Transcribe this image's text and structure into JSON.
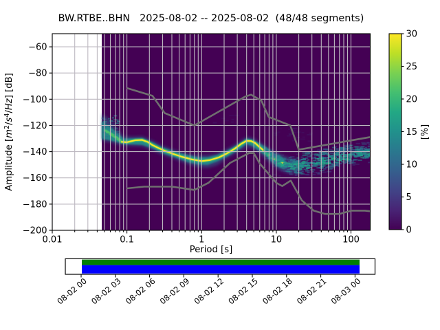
{
  "chart_data": [
    {
      "type": "heatmap",
      "title": "BW.RTBE..BHN   2025-08-02 -- 2025-08-02  (48/48 segments)",
      "xlabel": "Period [s]",
      "ylabel": "Amplitude [m2/s4/Hz] [dB]",
      "ylabel_parts": {
        "prefix": "Amplitude [",
        "unit_m": "m",
        "exp_m": "2",
        "slash1": "/",
        "unit_s": "s",
        "exp_s": "4",
        "slash2": "/",
        "unit_hz": "Hz",
        "suffix": "] [dB]"
      },
      "xscale": "log",
      "grid": true,
      "xlim": [
        0.01,
        181
      ],
      "ylim": [
        -200,
        -50
      ],
      "x_ticks": [
        {
          "v": 0.01,
          "label": "0.01"
        },
        {
          "v": 0.1,
          "label": "0.1"
        },
        {
          "v": 1,
          "label": "1"
        },
        {
          "v": 10,
          "label": "10"
        },
        {
          "v": 100,
          "label": "100"
        }
      ],
      "y_ticks": [
        {
          "v": -60,
          "label": "−60"
        },
        {
          "v": -80,
          "label": "−80"
        },
        {
          "v": -100,
          "label": "−100"
        },
        {
          "v": -120,
          "label": "−120"
        },
        {
          "v": -140,
          "label": "−140"
        },
        {
          "v": -160,
          "label": "−160"
        },
        {
          "v": -180,
          "label": "−180"
        },
        {
          "v": -200,
          "label": "−200"
        }
      ],
      "background_color": "#440154",
      "grid_color": "#bdb8c0",
      "noise_model_color": "#6f6f6f",
      "data_period_range": [
        0.046,
        181
      ],
      "colorbar": {
        "label": "[%]",
        "min": 0,
        "max": 30,
        "ticks": [
          "0",
          "5",
          "10",
          "15",
          "20",
          "25",
          "30"
        ],
        "tick_values": [
          0,
          5,
          10,
          15,
          20,
          25,
          30
        ],
        "colormap": "viridis",
        "stops": [
          "#440154",
          "#482475",
          "#414487",
          "#355f8d",
          "#2a788e",
          "#21918c",
          "#22a884",
          "#44bf70",
          "#7ad151",
          "#bddf26",
          "#fde725"
        ]
      },
      "psd_mode_curve_db": [
        [
          0.048,
          -123
        ],
        [
          0.055,
          -125
        ],
        [
          0.065,
          -127.5
        ],
        [
          0.075,
          -130
        ],
        [
          0.085,
          -132.5
        ],
        [
          0.1,
          -132.8
        ],
        [
          0.115,
          -132
        ],
        [
          0.13,
          -131.3
        ],
        [
          0.16,
          -131.1
        ],
        [
          0.19,
          -132.6
        ],
        [
          0.22,
          -135
        ],
        [
          0.26,
          -137
        ],
        [
          0.32,
          -139.3
        ],
        [
          0.42,
          -141.8
        ],
        [
          0.55,
          -144
        ],
        [
          0.75,
          -146
        ],
        [
          1,
          -147.2
        ],
        [
          1.3,
          -146.4
        ],
        [
          1.7,
          -144.4
        ],
        [
          2.2,
          -141.2
        ],
        [
          2.8,
          -137.6
        ],
        [
          3.4,
          -134
        ],
        [
          4,
          -131.7
        ],
        [
          4.6,
          -131.9
        ],
        [
          5.2,
          -133.4
        ],
        [
          6,
          -136.6
        ],
        [
          7,
          -139.8
        ],
        [
          8,
          -142.6
        ],
        [
          9,
          -144.8
        ],
        [
          10.5,
          -147
        ],
        [
          12.5,
          -149
        ],
        [
          15,
          -150.2
        ],
        [
          18,
          -150.8
        ],
        [
          22,
          -150.6
        ],
        [
          28,
          -149.6
        ],
        [
          35,
          -148.4
        ],
        [
          45,
          -147
        ],
        [
          60,
          -145.4
        ],
        [
          80,
          -143.8
        ],
        [
          110,
          -142.4
        ],
        [
          150,
          -141.2
        ],
        [
          185,
          -140.4
        ]
      ],
      "psd_envelope_db": [
        [
          0.046,
          -111,
          -132
        ],
        [
          0.06,
          -116,
          -133
        ],
        [
          0.075,
          -123,
          -134.5
        ],
        [
          0.09,
          -128,
          -135.5
        ],
        [
          0.12,
          -128.5,
          -135.8
        ],
        [
          0.16,
          -128.3,
          -136
        ],
        [
          0.22,
          -131.5,
          -139
        ],
        [
          0.3,
          -135.5,
          -142.5
        ],
        [
          0.45,
          -139,
          -146
        ],
        [
          0.65,
          -141.5,
          -149.5
        ],
        [
          0.9,
          -142.5,
          -152
        ],
        [
          1.2,
          -142.5,
          -152.5
        ],
        [
          1.6,
          -141.5,
          -150.5
        ],
        [
          2.2,
          -137.8,
          -145
        ],
        [
          3,
          -133.5,
          -140.5
        ],
        [
          4,
          -128.5,
          -136.5
        ],
        [
          4.8,
          -129.5,
          -137.5
        ],
        [
          6,
          -132.5,
          -141.5
        ],
        [
          7.5,
          -136,
          -146.5
        ],
        [
          9,
          -139,
          -150.5
        ],
        [
          11,
          -141.5,
          -154
        ],
        [
          14,
          -144,
          -156.5
        ],
        [
          18,
          -145.5,
          -157
        ],
        [
          22,
          -146,
          -157
        ]
      ],
      "psd_mid_band_db": [
        [
          0.046,
          -117,
          -130
        ],
        [
          0.06,
          -121,
          -131.5
        ],
        [
          0.075,
          -126,
          -132.8
        ],
        [
          0.09,
          -130,
          -134.3
        ],
        [
          0.12,
          -129.8,
          -134.5
        ],
        [
          0.16,
          -129.5,
          -134.8
        ],
        [
          0.22,
          -132.8,
          -137.5
        ],
        [
          0.3,
          -136.8,
          -141.3
        ],
        [
          0.45,
          -140,
          -144.5
        ],
        [
          0.65,
          -142.5,
          -148
        ],
        [
          0.9,
          -144.3,
          -149.8
        ],
        [
          1.2,
          -144.3,
          -150
        ],
        [
          1.6,
          -142.5,
          -147.5
        ],
        [
          2.2,
          -139,
          -143.8
        ],
        [
          3,
          -134.8,
          -139.3
        ],
        [
          4,
          -129.8,
          -134
        ],
        [
          4.8,
          -130.8,
          -135.8
        ],
        [
          6,
          -133.8,
          -139.8
        ],
        [
          7.5,
          -137,
          -144
        ],
        [
          9,
          -140.5,
          -148.5
        ],
        [
          11,
          -143,
          -152
        ],
        [
          13,
          -145.5,
          -153.5
        ]
      ],
      "core_period_range": [
        0.085,
        13
      ],
      "green_period_range": [
        0.052,
        14
      ],
      "cloud": {
        "period_range": [
          7,
          185
        ],
        "halfwidth_db": [
          [
            7,
            5
          ],
          [
            10,
            7
          ],
          [
            15,
            9
          ],
          [
            25,
            11
          ],
          [
            50,
            12
          ],
          [
            100,
            11
          ],
          [
            185,
            10
          ]
        ],
        "upper_cap": "NHNM-2.5"
      },
      "noise_models": {
        "NHNM": [
          [
            0.1,
            -91.5
          ],
          [
            0.22,
            -97.4
          ],
          [
            0.32,
            -110.5
          ],
          [
            0.8,
            -120
          ],
          [
            3.8,
            -98.1
          ],
          [
            4.6,
            -96.5
          ],
          [
            6.3,
            -101
          ],
          [
            7.9,
            -113.5
          ],
          [
            15.4,
            -120
          ],
          [
            20,
            -138.5
          ],
          [
            185,
            -128.8
          ]
        ],
        "NLNM": [
          [
            0.1,
            -168
          ],
          [
            0.17,
            -166.7
          ],
          [
            0.4,
            -166.7
          ],
          [
            0.8,
            -169.2
          ],
          [
            1.24,
            -163.7
          ],
          [
            2.4,
            -148.6
          ],
          [
            4.3,
            -141.1
          ],
          [
            5,
            -141.1
          ],
          [
            6,
            -149
          ],
          [
            10,
            -163.8
          ],
          [
            12,
            -166.2
          ],
          [
            15.6,
            -162.1
          ],
          [
            21.9,
            -177.1
          ],
          [
            31.6,
            -185
          ],
          [
            45,
            -187.5
          ],
          [
            70,
            -187.5
          ],
          [
            101,
            -185
          ],
          [
            154,
            -185
          ],
          [
            185,
            -185.6
          ]
        ]
      }
    },
    {
      "type": "coverage-timeline",
      "tick_labels": [
        "08-02 00",
        "08-02 03",
        "08-02 06",
        "08-02 09",
        "08-02 12",
        "08-02 15",
        "08-02 18",
        "08-02 21",
        "08-03 00"
      ],
      "covered_color_top": "#008000",
      "covered_color_bottom": "#0000ff",
      "frame_color": "#000000",
      "coverage_start_label": "08-02 00",
      "coverage_end_label": "08-03 00"
    }
  ]
}
